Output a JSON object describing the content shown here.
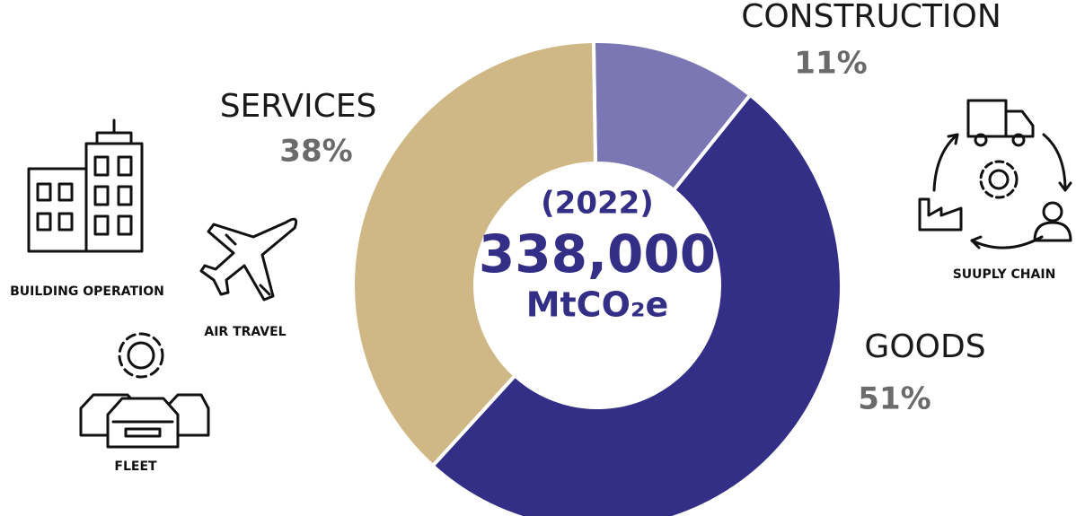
{
  "chart_data": {
    "type": "donut",
    "categories": [
      "CONSTRUCTION",
      "GOODS",
      "SERVICES"
    ],
    "values": [
      11,
      51,
      38
    ],
    "value_labels": [
      "11%",
      "51%",
      "38%"
    ],
    "colors": [
      "#7b77b4",
      "#332f86",
      "#cfb886"
    ],
    "center_text": [
      "(2022)",
      "338,000",
      "MtCO₂e"
    ]
  },
  "icons": [
    "BUILDING OPERATION",
    "AIR TRAVEL",
    "FLEET",
    "SUUPLY CHAIN"
  ]
}
